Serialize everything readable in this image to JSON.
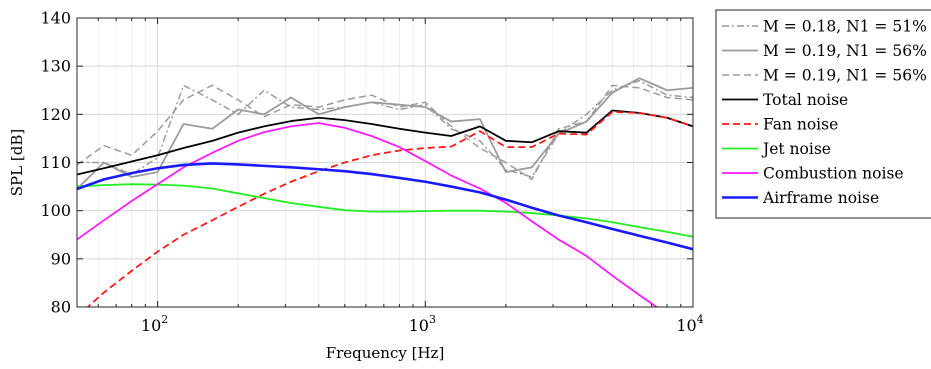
{
  "chart_data": {
    "type": "line",
    "xlabel": "Frequency [Hz]",
    "ylabel": "SPL [dB]",
    "xscale": "log",
    "xlim": [
      50,
      10000
    ],
    "ylim": [
      80,
      140
    ],
    "grid": true,
    "legend_position": "outside-right",
    "x_ticks": [
      {
        "base": "10",
        "exp": "2",
        "value": 100
      },
      {
        "base": "10",
        "exp": "3",
        "value": 1000
      },
      {
        "base": "10",
        "exp": "4",
        "value": 10000
      }
    ],
    "y_ticks": [
      "80",
      "90",
      "100",
      "110",
      "120",
      "130",
      "140"
    ],
    "series": [
      {
        "name": "M = 0.18, N1 = 51%",
        "color": "#9b9b9b",
        "dash": "dashdot",
        "width": 1.5,
        "x": [
          50,
          63,
          80,
          100,
          125,
          160,
          200,
          250,
          315,
          400,
          500,
          630,
          800,
          1000,
          1250,
          1600,
          2000,
          2500,
          3150,
          4000,
          5000,
          6300,
          8000,
          10000
        ],
        "y": [
          110,
          110,
          107.5,
          111,
          126,
          123,
          120,
          125,
          121.5,
          121,
          121.5,
          122.5,
          121,
          122,
          117,
          114.5,
          108.5,
          107,
          116,
          120,
          125,
          127,
          124,
          123.5
        ]
      },
      {
        "name": "M = 0.19, N1 = 56%",
        "color": "#9b9b9b",
        "dash": "solid",
        "width": 1.8,
        "x": [
          50,
          63,
          80,
          100,
          125,
          160,
          200,
          250,
          315,
          400,
          500,
          630,
          800,
          1000,
          1250,
          1600,
          2000,
          2500,
          3150,
          4000,
          5000,
          6300,
          8000,
          10000
        ],
        "y": [
          104.5,
          110,
          107,
          108,
          118,
          117,
          121,
          120,
          123.5,
          120,
          121.5,
          122.5,
          122,
          121.5,
          118.5,
          119,
          108,
          109,
          116,
          118.5,
          124.5,
          127.5,
          125,
          125.5
        ]
      },
      {
        "name": "M = 0.19, N1 = 56%",
        "color": "#9b9b9b",
        "dash": "dashed",
        "width": 1.5,
        "x": [
          50,
          63,
          80,
          100,
          125,
          160,
          200,
          250,
          315,
          400,
          500,
          630,
          800,
          1000,
          1250,
          1600,
          2000,
          2500,
          3150,
          4000,
          5000,
          6300,
          8000,
          10000
        ],
        "y": [
          109.5,
          113.5,
          111.5,
          116.5,
          123,
          126,
          123,
          119.5,
          122,
          121.5,
          123,
          124,
          121.5,
          122.5,
          117.5,
          113,
          110,
          106.5,
          117,
          118.5,
          126,
          125.5,
          123.5,
          123
        ]
      },
      {
        "name": "Total noise",
        "color": "#000000",
        "dash": "solid",
        "width": 1.8,
        "x": [
          50,
          63,
          80,
          100,
          125,
          160,
          200,
          250,
          315,
          400,
          500,
          630,
          800,
          1000,
          1250,
          1600,
          2000,
          2500,
          3150,
          4000,
          5000,
          6300,
          8000,
          10000
        ],
        "y": [
          107.5,
          108.8,
          110.2,
          111.5,
          113,
          114.5,
          116.2,
          117.5,
          118.6,
          119.3,
          118.8,
          118,
          117,
          116.2,
          115.5,
          117.5,
          114.5,
          114.2,
          116.5,
          116.2,
          120.8,
          120.3,
          119.3,
          117.5
        ]
      },
      {
        "name": "Fan noise",
        "color": "#ff1a1a",
        "dash": "dashed",
        "width": 1.8,
        "x": [
          50,
          63,
          80,
          100,
          125,
          160,
          200,
          250,
          315,
          400,
          500,
          630,
          800,
          1000,
          1250,
          1600,
          2000,
          2500,
          3150,
          4000,
          5000,
          6300,
          8000,
          10000
        ],
        "y": [
          78,
          83,
          87.5,
          91.5,
          95,
          98,
          100.8,
          103.5,
          106,
          108.2,
          110,
          111.5,
          112.5,
          113,
          113.3,
          116.5,
          113.2,
          113.2,
          116,
          115.8,
          120.5,
          120.3,
          119.3,
          117.5
        ]
      },
      {
        "name": "Jet noise",
        "color": "#22ee22",
        "dash": "solid",
        "width": 1.8,
        "x": [
          50,
          63,
          80,
          100,
          125,
          160,
          200,
          250,
          315,
          400,
          500,
          630,
          800,
          1000,
          1250,
          1600,
          2000,
          2500,
          3150,
          4000,
          5000,
          6300,
          8000,
          10000
        ],
        "y": [
          105,
          105.3,
          105.5,
          105.4,
          105.2,
          104.6,
          103.6,
          102.6,
          101.6,
          100.8,
          100.1,
          99.8,
          99.8,
          99.9,
          100,
          100,
          99.8,
          99.5,
          99,
          98.4,
          97.6,
          96.6,
          95.6,
          94.6
        ]
      },
      {
        "name": "Combustion noise",
        "color": "#ff1aff",
        "dash": "solid",
        "width": 1.8,
        "x": [
          50,
          63,
          80,
          100,
          125,
          160,
          200,
          250,
          315,
          400,
          500,
          630,
          800,
          1000,
          1250,
          1600,
          2000,
          2500,
          3150,
          4000,
          5000,
          6300,
          8000
        ],
        "y": [
          94,
          98,
          102,
          105.5,
          109,
          112,
          114.5,
          116.3,
          117.5,
          118.2,
          117.2,
          115.5,
          113.2,
          110.3,
          107.3,
          104.6,
          101.6,
          97.8,
          94,
          90.6,
          86.5,
          82.5,
          78.5
        ]
      },
      {
        "name": "Airframe noise",
        "color": "#1a1aff",
        "dash": "solid",
        "width": 2.6,
        "x": [
          50,
          63,
          80,
          100,
          125,
          160,
          200,
          250,
          315,
          400,
          500,
          630,
          800,
          1000,
          1250,
          1600,
          2000,
          2500,
          3150,
          4000,
          5000,
          6300,
          8000,
          10000
        ],
        "y": [
          104.5,
          106.5,
          107.8,
          108.8,
          109.5,
          109.8,
          109.6,
          109.3,
          109,
          108.6,
          108.2,
          107.6,
          106.8,
          106,
          105,
          103.8,
          102.3,
          100.6,
          99,
          97.6,
          96.2,
          94.8,
          93.4,
          92
        ]
      }
    ]
  }
}
